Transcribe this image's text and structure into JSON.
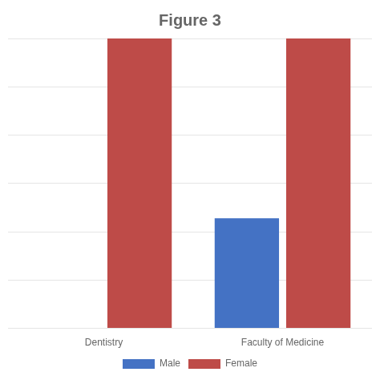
{
  "chart_data": {
    "type": "bar",
    "title": "Figure 3",
    "categories": [
      "Dentistry",
      "Faculty of Medicine"
    ],
    "series": [
      {
        "name": "Male",
        "color": "#4472C4",
        "values": [
          0,
          38
        ]
      },
      {
        "name": "Female",
        "color": "#BE4B48",
        "values": [
          100,
          100
        ]
      }
    ],
    "ylim": [
      0,
      100
    ],
    "yticks": [
      0,
      16.666666666666668,
      33.333333333333336,
      50,
      66.66666666666667,
      83.33333333333334,
      100
    ],
    "grid": true,
    "legend": "bottom",
    "tick_labels": "x"
  }
}
